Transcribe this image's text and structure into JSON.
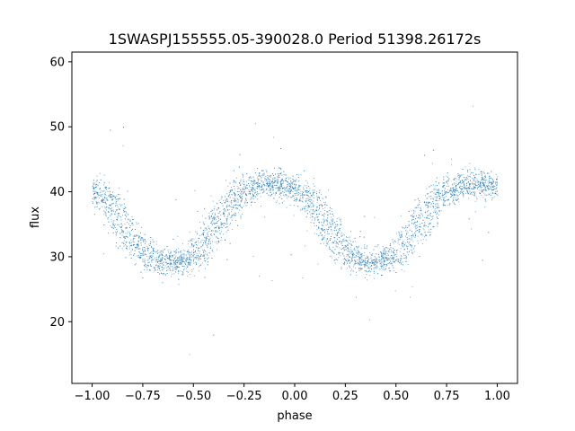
{
  "chart_data": {
    "type": "scatter",
    "title": "1SWASPJ155555.05-390028.0 Period 51398.26172s",
    "xlabel": "phase",
    "ylabel": "flux",
    "xlim": [
      -1.1,
      1.1
    ],
    "ylim": [
      10.5,
      61.5
    ],
    "xticks": [
      -1.0,
      -0.75,
      -0.5,
      -0.25,
      0.0,
      0.25,
      0.5,
      0.75,
      1.0
    ],
    "xtick_labels": [
      "−1.00",
      "−0.75",
      "−0.50",
      "−0.25",
      "0.00",
      "0.25",
      "0.50",
      "0.75",
      "1.00"
    ],
    "yticks": [
      20,
      30,
      40,
      50,
      60
    ],
    "ytick_labels": [
      "20",
      "30",
      "40",
      "50",
      "60"
    ],
    "grid": false,
    "legend": "none",
    "marker_color": "#1f77b4",
    "series": [
      {
        "description_points": "phase-folded light curve; periodic band, flux min ~29 near phase ±0.6 and 0.4, max ~41 near phase -0.15 and 0.85",
        "x": [
          -1.0,
          -0.9,
          -0.8,
          -0.7,
          -0.6,
          -0.5,
          -0.4,
          -0.3,
          -0.2,
          -0.1,
          0.0,
          0.1,
          0.2,
          0.3,
          0.4,
          0.5,
          0.6,
          0.7,
          0.8,
          0.9,
          1.0
        ],
        "y": [
          40.5,
          38.0,
          32.5,
          29.5,
          29.0,
          30.0,
          34.5,
          39.0,
          41.0,
          41.5,
          40.5,
          38.0,
          32.5,
          29.5,
          29.0,
          30.0,
          34.5,
          39.0,
          41.0,
          41.5,
          40.5
        ]
      }
    ]
  }
}
